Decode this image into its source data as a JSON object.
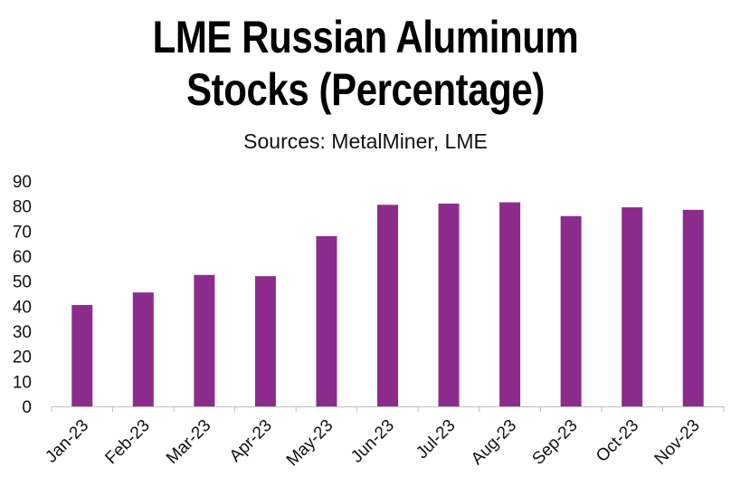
{
  "chart_data": {
    "type": "bar",
    "title_line1": "LME Russian Aluminum",
    "title_line2": "Stocks (Percentage)",
    "subtitle": "Sources: MetalMiner, LME",
    "categories": [
      "Jan-23",
      "Feb-23",
      "Mar-23",
      "Apr-23",
      "May-23",
      "Jun-23",
      "Jul-23",
      "Aug-23",
      "Sep-23",
      "Oct-23",
      "Nov-23"
    ],
    "values": [
      40.5,
      45.5,
      52.5,
      52,
      68,
      80.5,
      81,
      81.5,
      76,
      79.5,
      78.5
    ],
    "ylim": [
      0,
      90
    ],
    "yticks": [
      0,
      10,
      20,
      30,
      40,
      50,
      60,
      70,
      80,
      90
    ],
    "xlabel": "",
    "ylabel": "",
    "grid": false,
    "bar_color": "#8B2C8C",
    "axis_color": "#bfbfbf"
  }
}
